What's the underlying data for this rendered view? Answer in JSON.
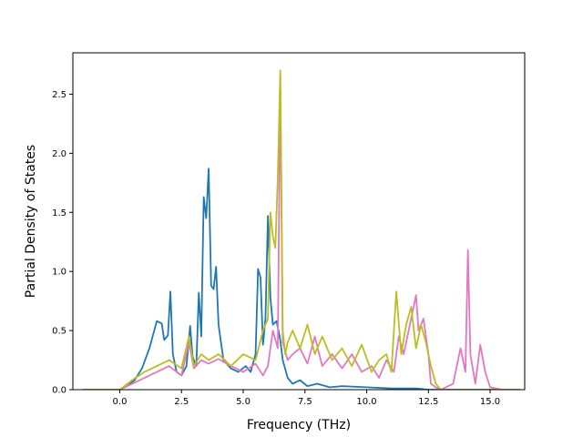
{
  "chart_data": {
    "type": "line",
    "title": "",
    "xlabel": "Frequency (THz)",
    "ylabel": "Partial Density of States",
    "xlim": [
      -1.9,
      16.4
    ],
    "ylim": [
      0,
      2.85
    ],
    "xticks": [
      0.0,
      2.5,
      5.0,
      7.5,
      10.0,
      12.5,
      15.0
    ],
    "xtick_labels": [
      "0.0",
      "2.5",
      "5.0",
      "7.5",
      "10.0",
      "12.5",
      "15.0"
    ],
    "yticks": [
      0.0,
      0.5,
      1.0,
      1.5,
      2.0,
      2.5
    ],
    "ytick_labels": [
      "0.0",
      "0.5",
      "1.0",
      "1.5",
      "2.0",
      "2.5"
    ],
    "grid": false,
    "legend": "none",
    "series": [
      {
        "color": "#1f77b4",
        "x": [
          -1.5,
          0.0,
          0.3,
          0.6,
          0.9,
          1.2,
          1.5,
          1.7,
          1.8,
          1.95,
          2.05,
          2.15,
          2.3,
          2.5,
          2.7,
          2.85,
          2.95,
          3.1,
          3.2,
          3.3,
          3.4,
          3.5,
          3.6,
          3.7,
          3.8,
          3.9,
          4.0,
          4.2,
          4.5,
          4.8,
          5.1,
          5.3,
          5.5,
          5.6,
          5.7,
          5.8,
          5.9,
          6.0,
          6.1,
          6.2,
          6.35,
          6.5,
          6.6,
          6.8,
          7.0,
          7.3,
          7.6,
          8.0,
          8.5,
          9.0,
          10.0,
          11.0,
          12.0,
          12.5,
          16.2
        ],
        "y": [
          0.0,
          0.0,
          0.03,
          0.08,
          0.18,
          0.35,
          0.58,
          0.56,
          0.42,
          0.46,
          0.83,
          0.3,
          0.15,
          0.12,
          0.2,
          0.54,
          0.28,
          0.2,
          0.82,
          0.45,
          1.63,
          1.45,
          1.87,
          0.88,
          0.85,
          1.04,
          0.55,
          0.25,
          0.18,
          0.15,
          0.2,
          0.15,
          0.3,
          1.02,
          0.95,
          0.38,
          0.6,
          1.47,
          0.78,
          0.55,
          0.58,
          0.42,
          0.25,
          0.1,
          0.05,
          0.08,
          0.03,
          0.05,
          0.02,
          0.03,
          0.02,
          0.01,
          0.01,
          0.0,
          0.0
        ]
      },
      {
        "color": "#e377c2",
        "x": [
          -1.5,
          0.0,
          0.5,
          1.0,
          1.5,
          2.0,
          2.5,
          2.8,
          3.0,
          3.3,
          3.6,
          4.0,
          4.5,
          5.0,
          5.5,
          5.8,
          6.0,
          6.2,
          6.4,
          6.5,
          6.6,
          6.8,
          7.0,
          7.3,
          7.6,
          7.9,
          8.2,
          8.6,
          9.0,
          9.4,
          9.8,
          10.2,
          10.5,
          10.8,
          11.1,
          11.3,
          11.5,
          11.8,
          12.0,
          12.1,
          12.3,
          12.5,
          12.6,
          12.8,
          13.0,
          13.5,
          13.8,
          14.0,
          14.1,
          14.2,
          14.4,
          14.6,
          14.8,
          15.0,
          15.5,
          16.2
        ],
        "y": [
          0.0,
          0.0,
          0.05,
          0.1,
          0.15,
          0.2,
          0.12,
          0.4,
          0.18,
          0.25,
          0.22,
          0.26,
          0.2,
          0.15,
          0.22,
          0.12,
          0.2,
          0.5,
          0.35,
          2.65,
          0.4,
          0.25,
          0.3,
          0.35,
          0.22,
          0.45,
          0.2,
          0.3,
          0.18,
          0.3,
          0.15,
          0.2,
          0.1,
          0.25,
          0.15,
          0.45,
          0.3,
          0.6,
          0.8,
          0.5,
          0.6,
          0.3,
          0.05,
          0.02,
          0.0,
          0.05,
          0.35,
          0.15,
          1.18,
          0.3,
          0.05,
          0.38,
          0.15,
          0.02,
          0.0,
          0.0
        ]
      },
      {
        "color": "#bcbd22",
        "x": [
          -1.5,
          0.0,
          0.5,
          1.0,
          1.5,
          2.0,
          2.5,
          2.8,
          3.0,
          3.3,
          3.6,
          4.0,
          4.5,
          5.0,
          5.5,
          5.8,
          6.0,
          6.1,
          6.2,
          6.3,
          6.4,
          6.5,
          6.6,
          6.7,
          6.8,
          7.0,
          7.3,
          7.6,
          7.9,
          8.2,
          8.6,
          9.0,
          9.4,
          9.8,
          10.2,
          10.5,
          10.8,
          11.0,
          11.2,
          11.4,
          11.6,
          11.8,
          12.0,
          12.2,
          12.4,
          12.6,
          12.8,
          13.0,
          16.2
        ],
        "y": [
          0.0,
          0.0,
          0.08,
          0.15,
          0.2,
          0.25,
          0.18,
          0.45,
          0.2,
          0.3,
          0.25,
          0.3,
          0.2,
          0.3,
          0.25,
          0.5,
          0.6,
          1.5,
          1.3,
          1.2,
          1.8,
          2.7,
          0.5,
          0.3,
          0.4,
          0.5,
          0.35,
          0.55,
          0.3,
          0.45,
          0.25,
          0.35,
          0.2,
          0.38,
          0.15,
          0.25,
          0.3,
          0.15,
          0.83,
          0.3,
          0.55,
          0.7,
          0.35,
          0.55,
          0.4,
          0.2,
          0.05,
          0.0,
          0.0
        ]
      }
    ]
  }
}
